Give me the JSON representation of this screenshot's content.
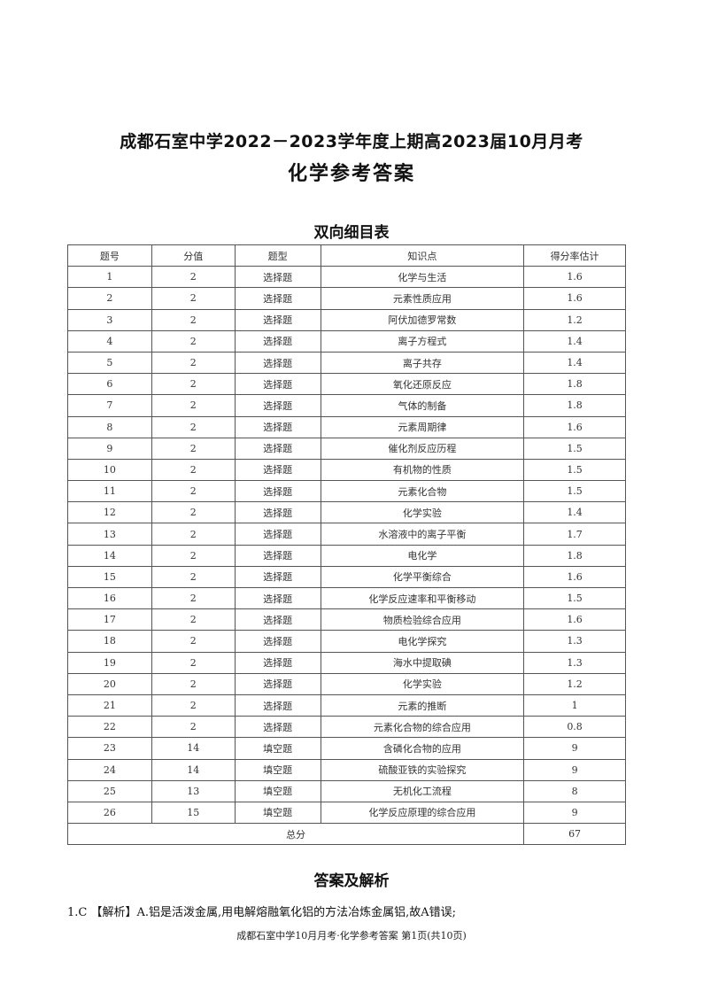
{
  "title": "成都石室中学2022－2023学年度上期高2023届10月月考",
  "subtitle": "化学参考答案",
  "table_title": "双向细目表",
  "table": {
    "headers": [
      "题号",
      "分值",
      "题型",
      "知识点",
      "得分率估计"
    ],
    "rows": [
      [
        "1",
        "2",
        "选择题",
        "化学与生活",
        "1.6"
      ],
      [
        "2",
        "2",
        "选择题",
        "元素性质应用",
        "1.6"
      ],
      [
        "3",
        "2",
        "选择题",
        "阿伏加德罗常数",
        "1.2"
      ],
      [
        "4",
        "2",
        "选择题",
        "离子方程式",
        "1.4"
      ],
      [
        "5",
        "2",
        "选择题",
        "离子共存",
        "1.4"
      ],
      [
        "6",
        "2",
        "选择题",
        "氧化还原反应",
        "1.8"
      ],
      [
        "7",
        "2",
        "选择题",
        "气体的制备",
        "1.8"
      ],
      [
        "8",
        "2",
        "选择题",
        "元素周期律",
        "1.6"
      ],
      [
        "9",
        "2",
        "选择题",
        "催化剂反应历程",
        "1.5"
      ],
      [
        "10",
        "2",
        "选择题",
        "有机物的性质",
        "1.5"
      ],
      [
        "11",
        "2",
        "选择题",
        "元素化合物",
        "1.5"
      ],
      [
        "12",
        "2",
        "选择题",
        "化学实验",
        "1.4"
      ],
      [
        "13",
        "2",
        "选择题",
        "水溶液中的离子平衡",
        "1.7"
      ],
      [
        "14",
        "2",
        "选择题",
        "电化学",
        "1.8"
      ],
      [
        "15",
        "2",
        "选择题",
        "化学平衡综合",
        "1.6"
      ],
      [
        "16",
        "2",
        "选择题",
        "化学反应速率和平衡移动",
        "1.5"
      ],
      [
        "17",
        "2",
        "选择题",
        "物质检验综合应用",
        "1.6"
      ],
      [
        "18",
        "2",
        "选择题",
        "电化学探究",
        "1.3"
      ],
      [
        "19",
        "2",
        "选择题",
        "海水中提取碘",
        "1.3"
      ],
      [
        "20",
        "2",
        "选择题",
        "化学实验",
        "1.2"
      ],
      [
        "21",
        "2",
        "选择题",
        "元素的推断",
        "1"
      ],
      [
        "22",
        "2",
        "选择题",
        "元素化合物的综合应用",
        "0.8"
      ],
      [
        "23",
        "14",
        "填空题",
        "含磷化合物的应用",
        "9"
      ],
      [
        "24",
        "14",
        "填空题",
        "硫酸亚铁的实验探究",
        "9"
      ],
      [
        "25",
        "13",
        "填空题",
        "无机化工流程",
        "8"
      ],
      [
        "26",
        "15",
        "填空题",
        "化学反应原理的综合应用",
        "9"
      ]
    ],
    "total_label": "总分",
    "total_value": "67"
  },
  "answers_title": "答案及解析",
  "answer_1": "1.C 【解析】A.铝是活泼金属,用电解熔融氧化铝的方法冶炼金属铝,故A错误;",
  "footer": "成都石室中学10月月考·化学参考答案 第1页(共10页)"
}
